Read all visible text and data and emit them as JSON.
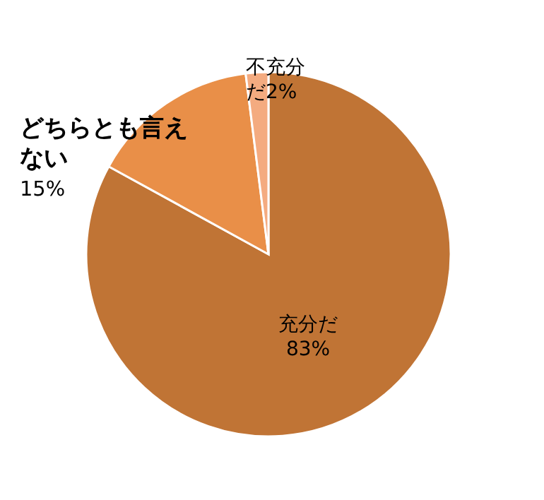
{
  "chart_data": {
    "type": "pie",
    "categories": [
      "充分だ",
      "どちらとも言えない",
      "不充分だ"
    ],
    "values": [
      83,
      15,
      2
    ],
    "colors": [
      "#c07435",
      "#e98f48",
      "#f4ab80"
    ],
    "value_labels": [
      "83%",
      "15%",
      "2%"
    ],
    "legend": false
  }
}
